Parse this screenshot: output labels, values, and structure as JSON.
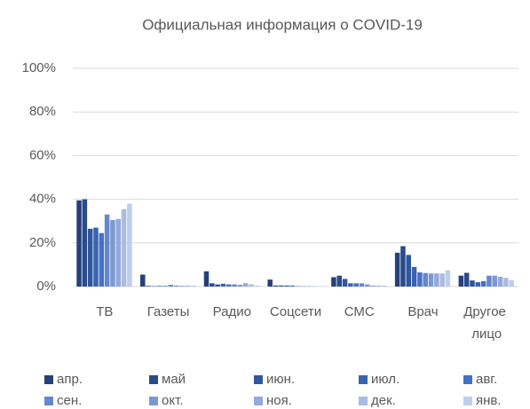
{
  "chart_data": {
    "type": "bar",
    "title": "Официальная информация о COVID-19",
    "categories": [
      "ТВ",
      "Газеты",
      "Радио",
      "Соцсети",
      "СМС",
      "Врач",
      "Другое лицо"
    ],
    "series": [
      {
        "name": "апр.",
        "color": "#25417a",
        "values": [
          39.5,
          5.5,
          7,
          3.2,
          4.3,
          15.5,
          5
        ]
      },
      {
        "name": "май",
        "color": "#2a4b8b",
        "values": [
          40,
          0.3,
          1.5,
          0.5,
          5,
          18.5,
          6.3
        ]
      },
      {
        "name": "июн.",
        "color": "#3056a0",
        "values": [
          26.5,
          0.2,
          1,
          0.5,
          3.5,
          14.5,
          2.8
        ]
      },
      {
        "name": "июл.",
        "color": "#3962b0",
        "values": [
          27,
          0.3,
          1.3,
          0.5,
          1.5,
          9,
          2
        ]
      },
      {
        "name": "авг.",
        "color": "#4472c4",
        "values": [
          24.5,
          0.3,
          1,
          0.5,
          1.5,
          6.5,
          2.5
        ]
      },
      {
        "name": "сен.",
        "color": "#6587cc",
        "values": [
          33,
          0.8,
          1,
          0.2,
          1.5,
          6.2,
          5
        ]
      },
      {
        "name": "окт.",
        "color": "#7c98d4",
        "values": [
          30.5,
          0.5,
          0.8,
          0.2,
          1,
          6,
          5
        ]
      },
      {
        "name": "ноя.",
        "color": "#93aadb",
        "values": [
          31,
          0.4,
          1.5,
          0.2,
          0.5,
          6,
          4.5
        ]
      },
      {
        "name": "дек.",
        "color": "#a9bce3",
        "values": [
          35.5,
          0.5,
          1,
          0.2,
          0.5,
          6,
          4
        ]
      },
      {
        "name": "янв.",
        "color": "#bfcdea",
        "values": [
          38,
          0.5,
          0.5,
          0.2,
          0.5,
          7.5,
          3
        ]
      }
    ],
    "ylim": [
      0,
      100
    ],
    "yticks": [
      {
        "value": 0,
        "label": "0%"
      },
      {
        "value": 20,
        "label": "20%"
      },
      {
        "value": 40,
        "label": "40%"
      },
      {
        "value": 60,
        "label": "60%"
      },
      {
        "value": 80,
        "label": "80%"
      },
      {
        "value": 100,
        "label": "100%"
      }
    ],
    "grid": true,
    "legend": "bottom"
  }
}
